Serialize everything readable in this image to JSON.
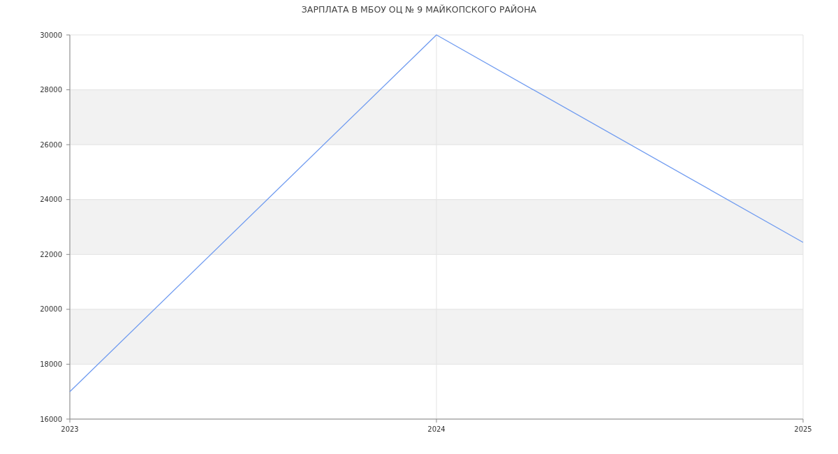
{
  "chart_data": {
    "type": "line",
    "title": "ЗАРПЛАТА В МБОУ ОЦ № 9 МАЙКОПСКОГО РАЙОНА",
    "x": [
      2023,
      2024,
      2025
    ],
    "series": [
      {
        "color": "#6f9bf0",
        "values": [
          17000,
          30000,
          22440
        ]
      }
    ],
    "xlim": [
      2023,
      2025
    ],
    "xticks": [
      2023,
      2024,
      2025
    ],
    "ylim": [
      16000,
      30000
    ],
    "yticks": [
      16000,
      18000,
      20000,
      22000,
      24000,
      26000,
      28000,
      30000
    ],
    "bands": [
      {
        "axis": "y",
        "from": 18000,
        "to": 20000,
        "color": "#f2f2f2"
      },
      {
        "axis": "y",
        "from": 22000,
        "to": 24000,
        "color": "#f2f2f2"
      },
      {
        "axis": "y",
        "from": 26000,
        "to": 28000,
        "color": "#f2f2f2"
      }
    ],
    "grid": true,
    "marker": "none",
    "line_style": "solid"
  }
}
